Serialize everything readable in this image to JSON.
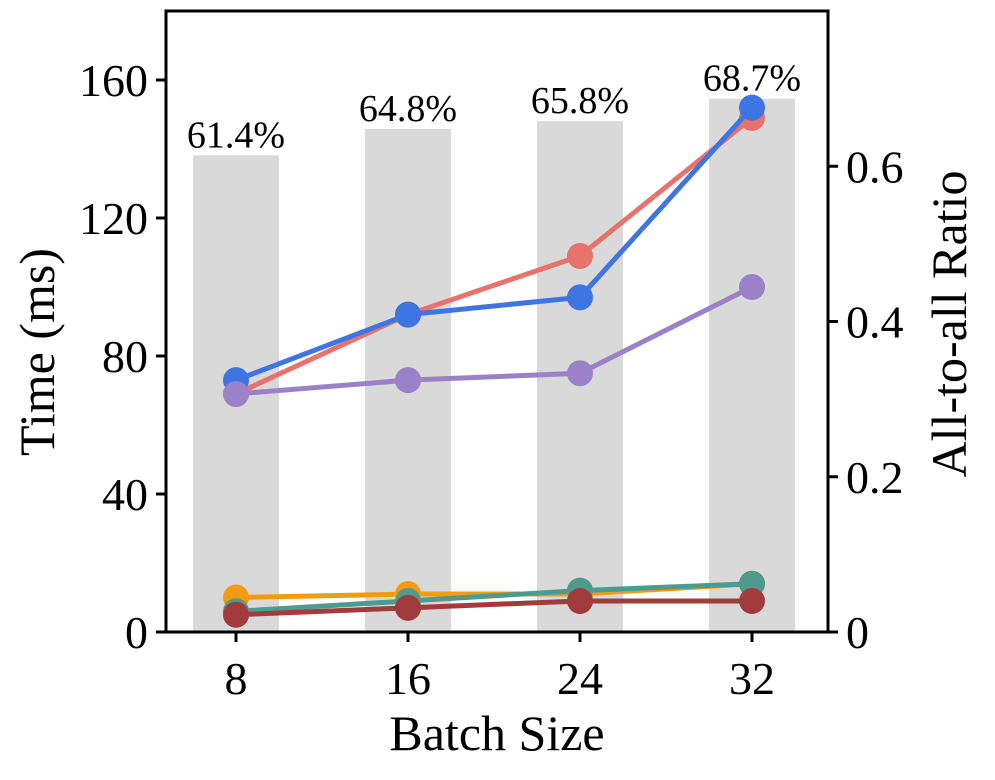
{
  "chart_data": {
    "type": "bar+line",
    "categories": [
      "8",
      "16",
      "24",
      "32"
    ],
    "xlabel": "Batch Size",
    "ylabel_left": "Time (ms)",
    "ylabel_right": "All-to-all Ratio",
    "ylim_left": [
      0,
      180
    ],
    "ylim_right": [
      0,
      0.8
    ],
    "yticks_left": [
      "0",
      "40",
      "80",
      "120",
      "160"
    ],
    "yticks_left_values": [
      0,
      40,
      80,
      120,
      160
    ],
    "yticks_right": [
      "0",
      "0.2",
      "0.4",
      "0.6"
    ],
    "yticks_right_values": [
      0,
      0.2,
      0.4,
      0.6
    ],
    "bars": {
      "axis": "right",
      "color": "#d9d9d9",
      "values": [
        0.614,
        0.648,
        0.658,
        0.687
      ],
      "labels": [
        "61.4%",
        "64.8%",
        "65.8%",
        "68.7%"
      ]
    },
    "series": [
      {
        "name": "red",
        "color": "#e8726c",
        "values": [
          69,
          92,
          109,
          149
        ]
      },
      {
        "name": "blue",
        "color": "#3f74e3",
        "values": [
          73,
          92,
          97,
          152
        ]
      },
      {
        "name": "purple",
        "color": "#9b82c8",
        "values": [
          69,
          73,
          75,
          100
        ]
      },
      {
        "name": "orange",
        "color": "#f39c12",
        "values": [
          10,
          11,
          11,
          14
        ]
      },
      {
        "name": "teal",
        "color": "#4f9a8f",
        "values": [
          6,
          9,
          12,
          14
        ]
      },
      {
        "name": "dark-red",
        "color": "#a23b3b",
        "values": [
          5,
          7,
          9,
          9
        ]
      }
    ]
  }
}
